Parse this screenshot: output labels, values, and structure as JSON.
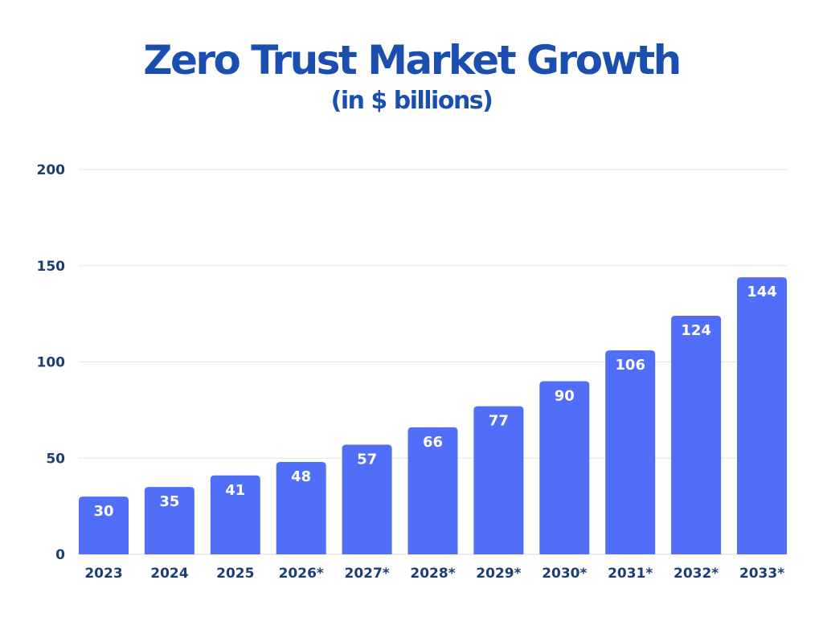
{
  "colors": {
    "title": "#1a4fb0",
    "bar": "#506ef7",
    "axis_text": "#1c3f73",
    "grid": "#e6e6e6",
    "data_label": "#ffffff"
  },
  "chart_data": {
    "type": "bar",
    "title": "Zero Trust Market Growth",
    "subtitle": "(in $ billions)",
    "xlabel": "",
    "ylabel": "",
    "categories": [
      "2023",
      "2024",
      "2025",
      "2026*",
      "2027*",
      "2028*",
      "2029*",
      "2030*",
      "2031*",
      "2032*",
      "2033*"
    ],
    "values": [
      30,
      35,
      41,
      48,
      57,
      66,
      77,
      90,
      106,
      124,
      144
    ],
    "data_labels": [
      "30",
      "35",
      "41",
      "48",
      "57",
      "66",
      "77",
      "90",
      "106",
      "124",
      "144"
    ],
    "ylim": [
      0,
      200
    ],
    "yticks": [
      0,
      50,
      100,
      150,
      200
    ],
    "ytick_labels": [
      "0",
      "50",
      "100",
      "150",
      "200"
    ],
    "grid": true,
    "legend": "none"
  }
}
